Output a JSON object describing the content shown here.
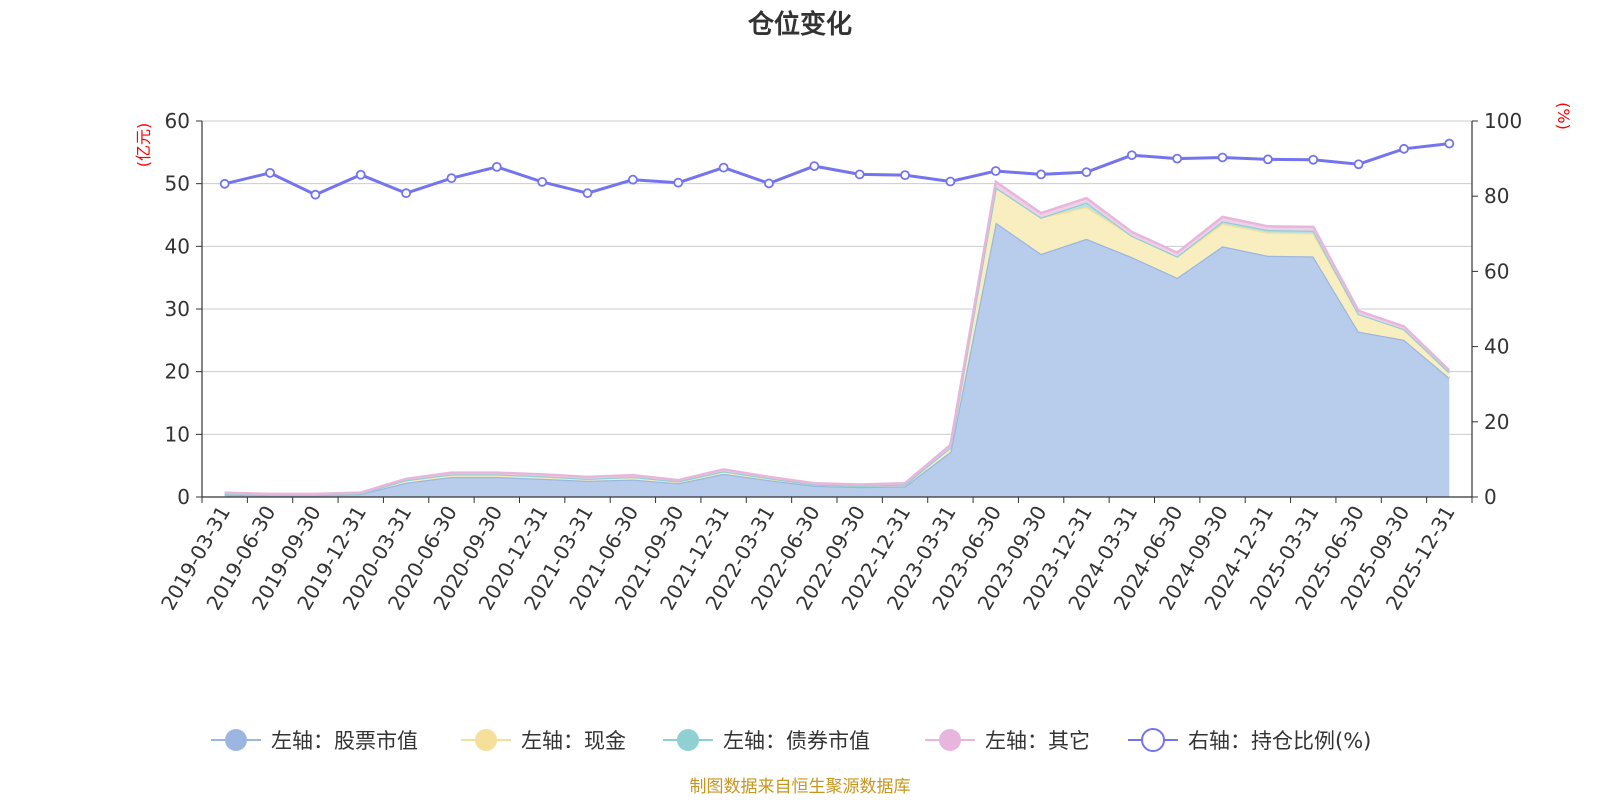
{
  "chart_data": {
    "type": "area",
    "title": "仓位变化",
    "y_left_unit": "(亿元)",
    "y_right_unit": "(%)",
    "y_left_range": [
      0,
      60
    ],
    "y_left_ticks": [
      0,
      10,
      20,
      30,
      40,
      50,
      60
    ],
    "y_right_range": [
      0,
      100
    ],
    "y_right_ticks": [
      0,
      20,
      40,
      60,
      80,
      100
    ],
    "grid": true,
    "legend_position": "bottom",
    "categories": [
      "2019-03-31",
      "2019-06-30",
      "2019-09-30",
      "2019-12-31",
      "2020-03-31",
      "2020-06-30",
      "2020-09-30",
      "2020-12-31",
      "2021-03-31",
      "2021-06-30",
      "2021-09-30",
      "2021-12-31",
      "2022-03-31",
      "2022-06-30",
      "2022-09-30",
      "2022-12-31",
      "2023-03-31",
      "2023-06-30",
      "2023-09-30",
      "2023-12-31",
      "2024-03-31",
      "2024-06-30",
      "2024-09-30",
      "2024-12-31",
      "2025-03-31",
      "2025-06-30",
      "2025-09-30",
      "2025-12-31"
    ],
    "series": [
      {
        "name": "左轴：股票市值",
        "axis": "left",
        "kind": "stacked-area",
        "color": "#9bb6e0",
        "fill": "#b8cdec",
        "values": [
          0.4,
          0.3,
          0.3,
          0.5,
          2.3,
          3.2,
          3.2,
          2.9,
          2.6,
          2.8,
          2.2,
          3.7,
          2.7,
          1.8,
          1.6,
          1.7,
          7.2,
          43.8,
          38.8,
          41.2,
          38.3,
          35.0,
          40.0,
          38.5,
          38.4,
          26.4,
          25.1,
          19.0
        ]
      },
      {
        "name": "左轴：现金",
        "axis": "left",
        "kind": "stacked-area",
        "color": "#f5df9a",
        "fill": "#f9eec0",
        "values": [
          0.2,
          0.1,
          0.1,
          0.1,
          0.4,
          0.4,
          0.4,
          0.4,
          0.3,
          0.4,
          0.3,
          0.4,
          0.3,
          0.2,
          0.2,
          0.3,
          0.7,
          5.6,
          5.8,
          5.1,
          3.4,
          3.4,
          3.6,
          3.7,
          3.7,
          2.8,
          1.7,
          0.9
        ]
      },
      {
        "name": "左轴：债券市值",
        "axis": "left",
        "kind": "stacked-area",
        "color": "#8fd0d2",
        "fill": "#b7e1e2",
        "values": [
          0,
          0,
          0,
          0,
          0,
          0,
          0,
          0,
          0,
          0,
          0,
          0,
          0,
          0,
          0,
          0,
          0,
          0,
          0,
          0.7,
          0,
          0,
          0.4,
          0.4,
          0.4,
          0,
          0,
          0
        ]
      },
      {
        "name": "左轴：其它",
        "axis": "left",
        "kind": "stacked-area",
        "color": "#e8b6dc",
        "fill": "#f0cfe8",
        "values": [
          0.1,
          0.1,
          0.1,
          0.1,
          0.2,
          0.3,
          0.3,
          0.3,
          0.3,
          0.3,
          0.2,
          0.3,
          0.2,
          0.2,
          0.2,
          0.2,
          0.4,
          0.9,
          0.7,
          0.7,
          0.6,
          0.6,
          0.7,
          0.6,
          0.6,
          0.5,
          0.4,
          0.3
        ]
      },
      {
        "name": "右轴：持仓比例(%)",
        "axis": "right",
        "kind": "line",
        "color": "#7474ee",
        "values": [
          83.3,
          86.2,
          80.4,
          85.7,
          80.8,
          84.8,
          87.8,
          83.8,
          80.8,
          84.4,
          83.6,
          87.6,
          83.4,
          88.0,
          85.8,
          85.6,
          83.9,
          86.7,
          85.8,
          86.4,
          90.9,
          90.0,
          90.3,
          89.8,
          89.7,
          88.5,
          92.6,
          94.0
        ]
      }
    ],
    "source_note": "制图数据来自恒生聚源数据库"
  },
  "colors": {
    "axis": "#333333",
    "grid": "#cccccc",
    "unit": "#ff0000",
    "source": "#c8961e"
  }
}
